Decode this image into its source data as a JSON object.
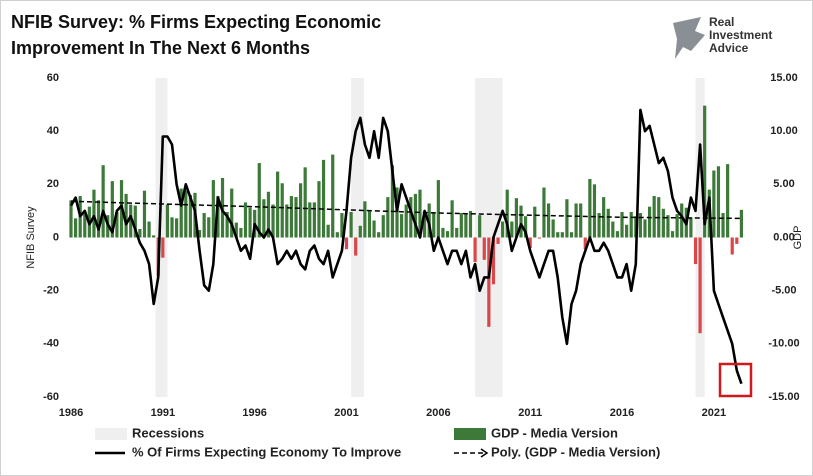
{
  "chart_data": {
    "type": "combo",
    "title": "NFIB Survey:  % Firms Expecting Economic Improvement In The  Next 6 Months",
    "annotations": [
      "Real",
      "Investment",
      "Advice"
    ],
    "ylabel": "NFIB Survey",
    "y2label": "GDP",
    "xlim": [
      1986,
      2022.75
    ],
    "xticks": [
      1986,
      1991,
      1996,
      2001,
      2006,
      2011,
      2016,
      2021
    ],
    "ylim": [
      -60,
      60
    ],
    "yticks": [
      60,
      40,
      20,
      0,
      -20,
      -40,
      -60
    ],
    "y2lim": [
      -15,
      15
    ],
    "y2ticks": [
      {
        "value": 15,
        "label": "15.00"
      },
      {
        "value": 10,
        "label": "10.00"
      },
      {
        "value": 5,
        "label": "5.00"
      },
      {
        "value": 0,
        "label": "0.00"
      },
      {
        "value": -5,
        "label": "-5.00"
      },
      {
        "value": -10,
        "label": "-10.00"
      },
      {
        "value": -15,
        "label": "-15.00"
      }
    ],
    "grid": false,
    "recessions": {
      "name": "Recessions",
      "color": "#efefef",
      "spans": [
        [
          1990.6,
          1991.25
        ],
        [
          2001.25,
          2001.95
        ],
        [
          2008.0,
          2009.5
        ],
        [
          2020.0,
          2020.5
        ]
      ]
    },
    "x": [
      1986,
      1986.25,
      1986.5,
      1986.75,
      1987,
      1987.25,
      1987.5,
      1987.75,
      1988,
      1988.25,
      1988.5,
      1988.75,
      1989,
      1989.25,
      1989.5,
      1989.75,
      1990,
      1990.25,
      1990.5,
      1990.75,
      1991,
      1991.25,
      1991.5,
      1991.75,
      1992,
      1992.25,
      1992.5,
      1992.75,
      1993,
      1993.25,
      1993.5,
      1993.75,
      1994,
      1994.25,
      1994.5,
      1994.75,
      1995,
      1995.25,
      1995.5,
      1995.75,
      1996,
      1996.25,
      1996.5,
      1996.75,
      1997,
      1997.25,
      1997.5,
      1997.75,
      1998,
      1998.25,
      1998.5,
      1998.75,
      1999,
      1999.25,
      1999.5,
      1999.75,
      2000,
      2000.25,
      2000.5,
      2000.75,
      2001,
      2001.25,
      2001.5,
      2001.75,
      2002,
      2002.25,
      2002.5,
      2002.75,
      2003,
      2003.25,
      2003.5,
      2003.75,
      2004,
      2004.25,
      2004.5,
      2004.75,
      2005,
      2005.25,
      2005.5,
      2005.75,
      2006,
      2006.25,
      2006.5,
      2006.75,
      2007,
      2007.25,
      2007.5,
      2007.75,
      2008,
      2008.25,
      2008.5,
      2008.75,
      2009,
      2009.25,
      2009.5,
      2009.75,
      2010,
      2010.25,
      2010.5,
      2010.75,
      2011,
      2011.25,
      2011.5,
      2011.75,
      2012,
      2012.25,
      2012.5,
      2012.75,
      2013,
      2013.25,
      2013.5,
      2013.75,
      2014,
      2014.25,
      2014.5,
      2014.75,
      2015,
      2015.25,
      2015.5,
      2015.75,
      2016,
      2016.25,
      2016.5,
      2016.75,
      2017,
      2017.25,
      2017.5,
      2017.75,
      2018,
      2018.25,
      2018.5,
      2018.75,
      2019,
      2019.25,
      2019.5,
      2019.75,
      2020,
      2020.25,
      2020.5,
      2020.75,
      2021,
      2021.25,
      2021.5,
      2021.75,
      2022,
      2022.25,
      2022.5
    ],
    "series": [
      {
        "name": "GDP - Media Version",
        "type": "bar",
        "axis": "y2",
        "color": "#3d7a3a",
        "negative_color": "#d9474b",
        "values": [
          3.5,
          1.8,
          3.9,
          2.2,
          2.9,
          4.5,
          3.5,
          6.8,
          2.1,
          5.3,
          2.4,
          5.4,
          4.1,
          3.1,
          3.0,
          0.8,
          4.4,
          1.5,
          0.2,
          -3.6,
          -1.9,
          3.1,
          1.9,
          1.8,
          4.6,
          4.4,
          4.0,
          4.2,
          0.7,
          2.3,
          1.9,
          5.4,
          3.9,
          5.6,
          2.4,
          4.6,
          1.4,
          0.9,
          3.3,
          2.8,
          2.6,
          7.0,
          3.6,
          4.3,
          3.1,
          6.2,
          5.1,
          3.1,
          3.9,
          3.8,
          5.1,
          6.6,
          3.3,
          3.3,
          5.3,
          7.3,
          1.2,
          7.8,
          0.5,
          2.3,
          -1.1,
          2.4,
          -1.7,
          1.1,
          3.4,
          2.5,
          1.6,
          0.5,
          2.1,
          3.8,
          6.8,
          4.7,
          2.2,
          3.1,
          3.8,
          4.1,
          4.5,
          2.0,
          3.2,
          2.3,
          5.4,
          0.9,
          0.6,
          3.5,
          0.9,
          2.3,
          2.2,
          2.5,
          -2.3,
          2.1,
          -2.1,
          -8.4,
          -4.4,
          -0.6,
          1.5,
          4.5,
          1.5,
          3.7,
          3.0,
          2.0,
          -1.0,
          2.9,
          -0.1,
          4.7,
          3.2,
          1.7,
          0.5,
          0.5,
          3.6,
          0.5,
          3.2,
          3.2,
          -1.1,
          5.5,
          5.0,
          2.3,
          3.8,
          2.7,
          1.5,
          0.6,
          2.4,
          1.2,
          2.4,
          2.0,
          2.3,
          1.7,
          2.9,
          3.9,
          3.8,
          2.7,
          2.1,
          0.6,
          2.2,
          3.2,
          2.8,
          1.9,
          -2.5,
          -9.0,
          12.4,
          4.5,
          6.3,
          6.7,
          2.3,
          6.9,
          -1.6,
          -0.6,
          2.6
        ]
      },
      {
        "name": "% Of Firms Expecting Economy To Improve",
        "type": "line",
        "axis": "y",
        "color": "#000000",
        "values": [
          12,
          15,
          8,
          10,
          5,
          8,
          3,
          10,
          5,
          2,
          10,
          12,
          5,
          8,
          3,
          -2,
          -5,
          -10,
          -25,
          -15,
          38,
          38,
          35,
          20,
          12,
          20,
          15,
          10,
          -5,
          -18,
          -20,
          -10,
          15,
          10,
          8,
          5,
          0,
          -5,
          -3,
          -8,
          5,
          2,
          0,
          3,
          0,
          -10,
          -8,
          -5,
          -8,
          -5,
          -10,
          -12,
          -5,
          -3,
          -8,
          -10,
          -5,
          -15,
          -10,
          -5,
          10,
          30,
          40,
          45,
          35,
          30,
          40,
          30,
          45,
          40,
          25,
          10,
          20,
          15,
          10,
          5,
          0,
          10,
          5,
          -5,
          0,
          -5,
          -10,
          -5,
          -5,
          -10,
          -5,
          -15,
          -10,
          -20,
          -15,
          -15,
          0,
          5,
          10,
          5,
          -5,
          0,
          5,
          2,
          -5,
          -10,
          -15,
          -10,
          -5,
          -5,
          -15,
          -30,
          -40,
          -25,
          -20,
          -10,
          -5,
          0,
          -5,
          -5,
          -2,
          -5,
          -10,
          -15,
          -15,
          -10,
          -20,
          -10,
          48,
          40,
          42,
          35,
          28,
          30,
          25,
          15,
          10,
          8,
          5,
          15,
          10,
          35,
          5,
          15,
          -20,
          -25,
          -30,
          -35,
          -40,
          -50,
          -55
        ]
      },
      {
        "name": "Poly. (GDP - Media Version)",
        "type": "line",
        "axis": "y2",
        "color": "#000000",
        "line_style": "dashed",
        "x": [
          1986,
          1996,
          2006,
          2016,
          2022.5
        ],
        "values": [
          3.4,
          2.9,
          2.3,
          1.9,
          1.8
        ]
      }
    ]
  }
}
